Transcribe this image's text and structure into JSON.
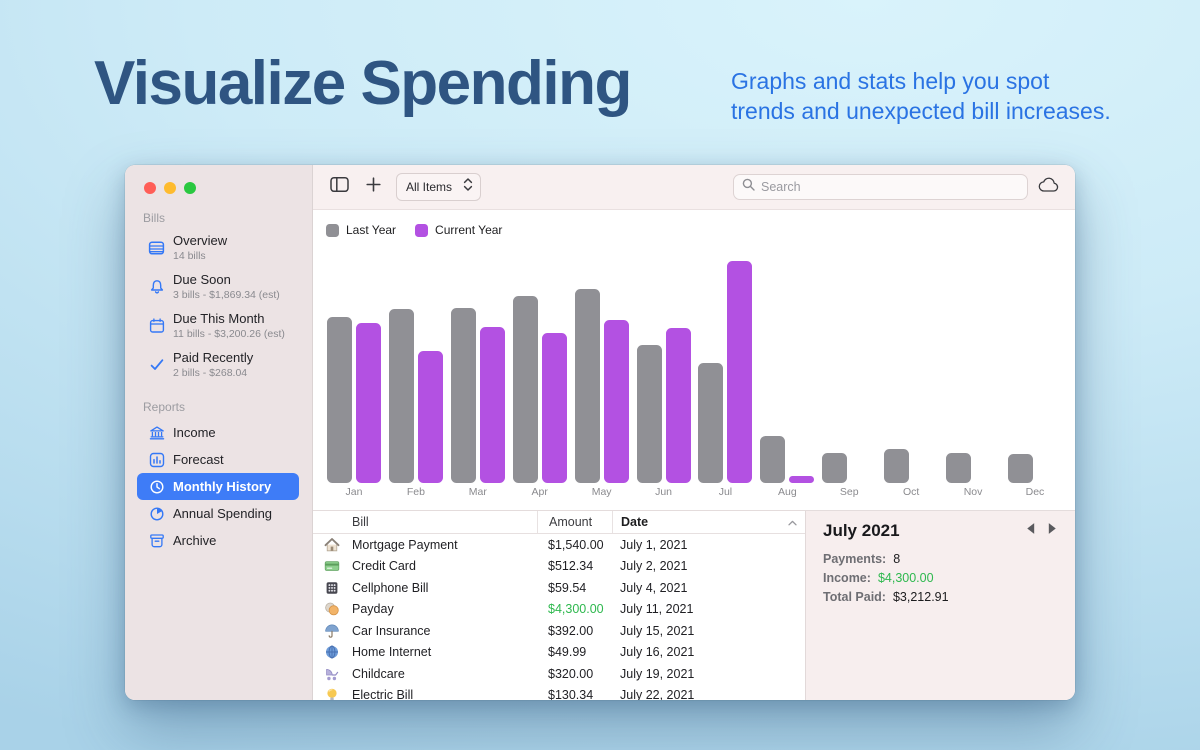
{
  "hero": {
    "title": "Visualize Spending",
    "subtitle": "Graphs and stats help you spot\ntrends and unexpected bill increases."
  },
  "toolbar": {
    "filter_label": "All Items",
    "search_placeholder": "Search"
  },
  "sidebar": {
    "sections": [
      {
        "label": "Bills",
        "items": [
          {
            "icon": "list-icon",
            "title": "Overview",
            "subtitle": "14 bills"
          },
          {
            "icon": "bell-icon",
            "title": "Due Soon",
            "subtitle": "3 bills - $1,869.34 (est)"
          },
          {
            "icon": "calendar-icon",
            "title": "Due This Month",
            "subtitle": "11 bills - $3,200.26 (est)"
          },
          {
            "icon": "check-icon",
            "title": "Paid Recently",
            "subtitle": "2 bills - $268.04"
          }
        ]
      },
      {
        "label": "Reports",
        "items": [
          {
            "icon": "bank-icon",
            "title": "Income"
          },
          {
            "icon": "chart-icon",
            "title": "Forecast"
          },
          {
            "icon": "clock-icon",
            "title": "Monthly History",
            "selected": true
          },
          {
            "icon": "pie-icon",
            "title": "Annual Spending"
          },
          {
            "icon": "archive-icon",
            "title": "Archive"
          }
        ]
      }
    ]
  },
  "chart_data": {
    "type": "bar",
    "categories": [
      "Jan",
      "Feb",
      "Mar",
      "Apr",
      "May",
      "Jun",
      "Jul",
      "Aug",
      "Sep",
      "Oct",
      "Nov",
      "Dec"
    ],
    "series": [
      {
        "name": "Last Year",
        "color": "#909095",
        "values": [
          2400,
          2520,
          2530,
          2710,
          2810,
          2000,
          1740,
          680,
          435,
          490,
          435,
          420
        ]
      },
      {
        "name": "Current Year",
        "color": "#b351e2",
        "values": [
          2320,
          1910,
          2260,
          2170,
          2360,
          2240,
          3213,
          100,
          null,
          null,
          null,
          null
        ]
      }
    ],
    "title": "",
    "xlabel": "",
    "ylabel": "",
    "ylim": [
      0,
      3300
    ],
    "grid": false,
    "legend_position": "top-left"
  },
  "table": {
    "columns": [
      "Bill",
      "Amount",
      "Date"
    ],
    "sorted_by": "Date",
    "rows": [
      {
        "icon": "house-icon",
        "bill": "Mortgage Payment",
        "amount": "$1,540.00",
        "date": "July 1, 2021"
      },
      {
        "icon": "credit-card-icon",
        "bill": "Credit Card",
        "amount": "$512.34",
        "date": "July 2, 2021"
      },
      {
        "icon": "keypad-icon",
        "bill": "Cellphone Bill",
        "amount": "$59.54",
        "date": "July 4, 2021"
      },
      {
        "icon": "coins-icon",
        "bill": "Payday",
        "amount": "$4,300.00",
        "amount_color": "#2eb84e",
        "date": "July 11, 2021"
      },
      {
        "icon": "umbrella-icon",
        "bill": "Car Insurance",
        "amount": "$392.00",
        "date": "July 15, 2021"
      },
      {
        "icon": "globe-icon",
        "bill": "Home Internet",
        "amount": "$49.99",
        "date": "July 16, 2021"
      },
      {
        "icon": "stroller-icon",
        "bill": "Childcare",
        "amount": "$320.00",
        "date": "July 19, 2021"
      },
      {
        "icon": "bulb-icon",
        "bill": "Electric Bill",
        "amount": "$130.34",
        "date": "July 22, 2021"
      }
    ]
  },
  "summary": {
    "title": "July 2021",
    "stats": [
      {
        "label": "Payments:",
        "value": "8"
      },
      {
        "label": "Income:",
        "value": "$4,300.00",
        "value_color": "#2eb84e"
      },
      {
        "label": "Total Paid:",
        "value": "$3,212.91"
      }
    ]
  },
  "colors": {
    "accent_blue": "#3e7cf7",
    "sidebar_icon_blue": "#3478f6",
    "bar_gray": "#909095",
    "bar_purple": "#b351e2",
    "income_green": "#2eb84e",
    "hero_title": "#2f5582",
    "hero_subtitle": "#2a73e3"
  }
}
